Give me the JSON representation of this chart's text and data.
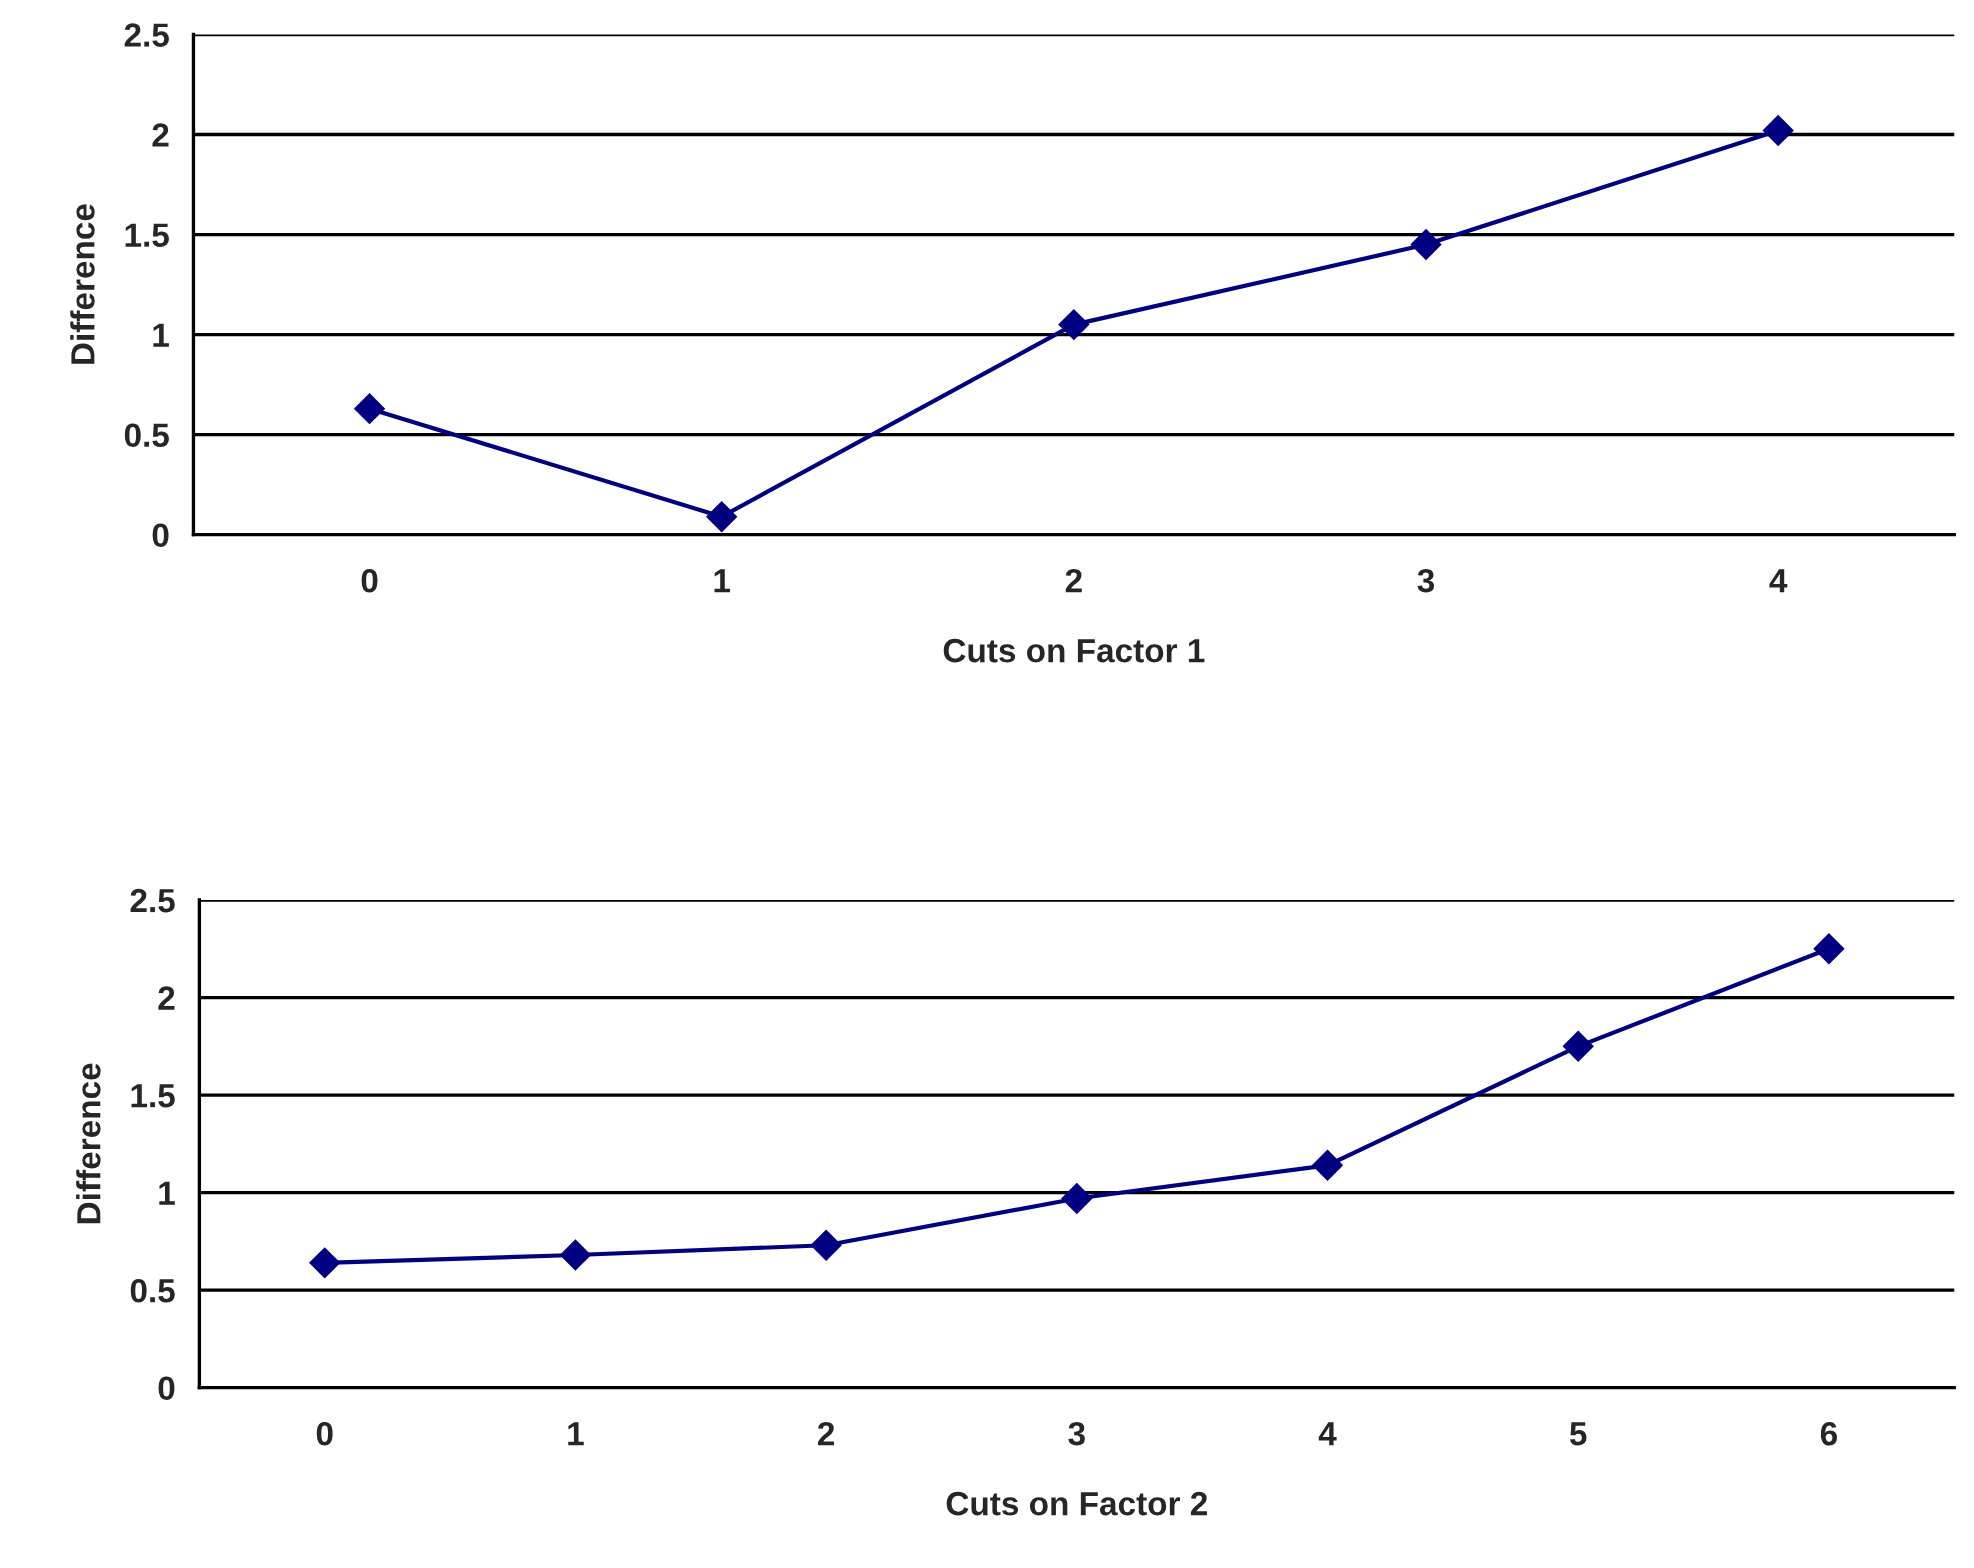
{
  "chart_data": [
    {
      "type": "line",
      "xlabel": "Cuts on Factor 1",
      "ylabel": "Difference",
      "categories": [
        "0",
        "1",
        "2",
        "3",
        "4"
      ],
      "series": [
        {
          "color": "#000080",
          "values": [
            0.63,
            0.09,
            1.05,
            1.45,
            2.02
          ]
        }
      ],
      "ylim": [
        0,
        2.5
      ],
      "yticks": [
        0,
        0.5,
        1,
        1.5,
        2,
        2.5
      ],
      "grid": "y",
      "marker": "diamond",
      "line_style": "solid"
    },
    {
      "type": "line",
      "xlabel": "Cuts on Factor 2",
      "ylabel": "Difference",
      "categories": [
        "0",
        "1",
        "2",
        "3",
        "4",
        "5",
        "6"
      ],
      "series": [
        {
          "color": "#000080",
          "values": [
            0.64,
            0.68,
            0.73,
            0.97,
            1.14,
            1.75,
            2.25
          ]
        }
      ],
      "ylim": [
        0,
        2.5
      ],
      "yticks": [
        0,
        0.5,
        1,
        1.5,
        2,
        2.5
      ],
      "grid": "y",
      "marker": "diamond",
      "line_style": "solid"
    }
  ]
}
